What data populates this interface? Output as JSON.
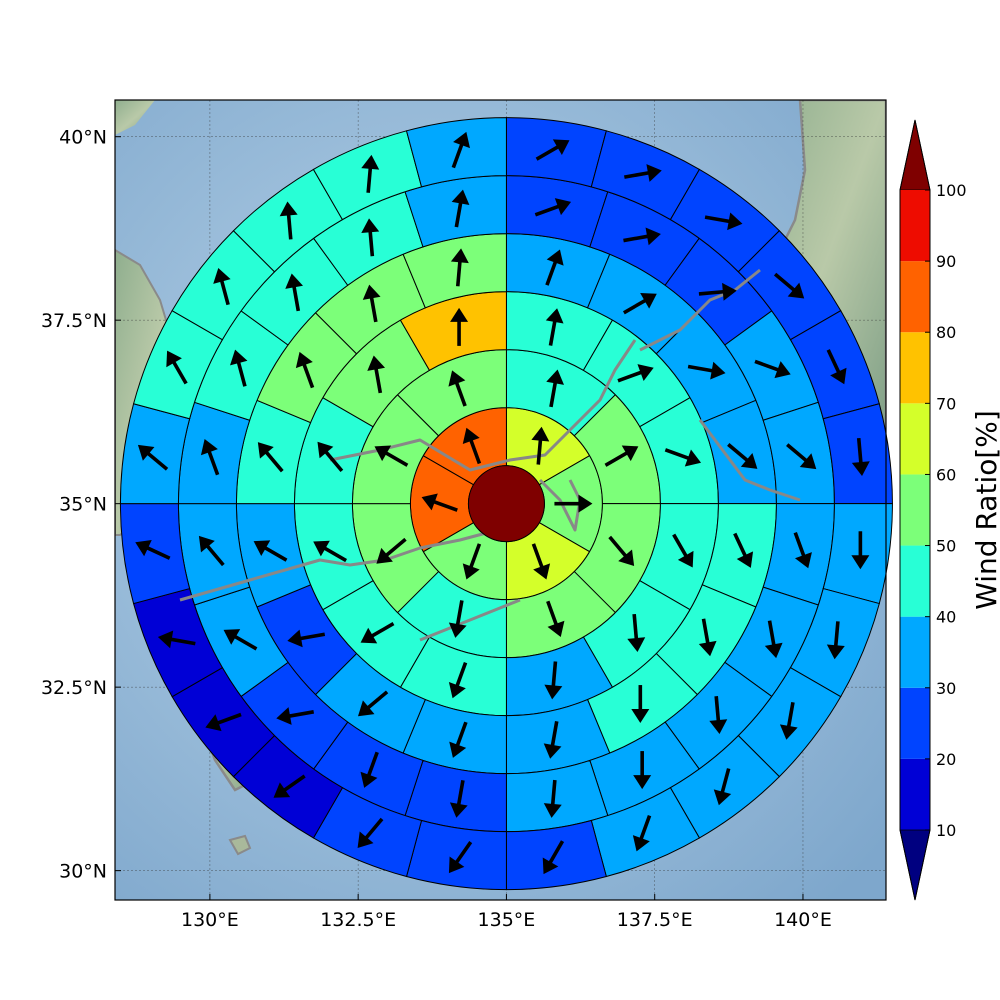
{
  "chart_data": {
    "type": "polar-sector-map",
    "map": {
      "lon_range": [
        128.4,
        141.4
      ],
      "lat_range": [
        29.6,
        40.5
      ],
      "x_ticks": [
        {
          "value": 130,
          "label": "130°E"
        },
        {
          "value": 132.5,
          "label": "132.5°E"
        },
        {
          "value": 135,
          "label": "135°E"
        },
        {
          "value": 137.5,
          "label": "137.5°E"
        },
        {
          "value": 140,
          "label": "140°E"
        }
      ],
      "y_ticks": [
        {
          "value": 30,
          "label": "30°N"
        },
        {
          "value": 32.5,
          "label": "32.5°N"
        },
        {
          "value": 35,
          "label": "35°N"
        },
        {
          "value": 37.5,
          "label": "37.5°N"
        },
        {
          "value": 40,
          "label": "40°N"
        }
      ],
      "grid": true
    },
    "center": {
      "lon": 135.0,
      "lat": 35.0,
      "value": 100
    },
    "rings": [
      {
        "sectors": 6,
        "values": [
          65,
          55,
          60,
          55,
          80,
          80
        ],
        "arrows": [
          5,
          90,
          160,
          200,
          290,
          340
        ]
      },
      {
        "sectors": 8,
        "values": [
          45,
          55,
          50,
          55,
          40,
          50,
          55,
          55
        ],
        "arrows": [
          10,
          60,
          140,
          160,
          190,
          230,
          300,
          340
        ]
      },
      {
        "sectors": 12,
        "values": [
          40,
          45,
          45,
          40,
          40,
          30,
          40,
          40,
          40,
          40,
          50,
          70
        ],
        "arrows": [
          10,
          70,
          110,
          150,
          175,
          185,
          200,
          240,
          300,
          320,
          350,
          360
        ]
      },
      {
        "sectors": 16,
        "values": [
          30,
          30,
          30,
          35,
          45,
          45,
          40,
          30,
          35,
          30,
          20,
          35,
          45,
          50,
          55,
          55
        ],
        "arrows": [
          20,
          60,
          100,
          130,
          155,
          170,
          180,
          190,
          200,
          230,
          260,
          300,
          320,
          340,
          350,
          5
        ]
      },
      {
        "sectors": 20,
        "values": [
          20,
          20,
          20,
          30,
          30,
          35,
          35,
          35,
          35,
          30,
          20,
          20,
          25,
          30,
          35,
          35,
          40,
          40,
          40,
          35
        ],
        "arrows": [
          70,
          80,
          85,
          110,
          130,
          160,
          170,
          175,
          180,
          185,
          190,
          200,
          260,
          300,
          320,
          340,
          345,
          350,
          355,
          10
        ]
      },
      {
        "sectors": 24,
        "values": [
          20,
          20,
          20,
          20,
          20,
          25,
          30,
          35,
          35,
          35,
          35,
          25,
          20,
          20,
          10,
          10,
          10,
          25,
          35,
          40,
          40,
          40,
          40,
          35
        ],
        "arrows": [
          60,
          80,
          100,
          130,
          155,
          175,
          180,
          185,
          190,
          195,
          200,
          210,
          215,
          220,
          235,
          250,
          280,
          295,
          310,
          330,
          345,
          355,
          5,
          20
        ]
      }
    ],
    "colorbar": {
      "title": "Wind Ratio[%]",
      "bounds": [
        10,
        20,
        30,
        40,
        50,
        60,
        70,
        80,
        90,
        100
      ],
      "colors": [
        "#0000d6",
        "#0044ff",
        "#00a8ff",
        "#28ffd6",
        "#7cff79",
        "#d4ff2a",
        "#ffc200",
        "#ff6200",
        "#ee0c00"
      ],
      "under_color": "#000080",
      "over_color": "#7f0000",
      "tick_labels": [
        "10",
        "20",
        "30",
        "40",
        "50",
        "60",
        "70",
        "80",
        "90",
        "100"
      ],
      "extend": "both"
    }
  }
}
